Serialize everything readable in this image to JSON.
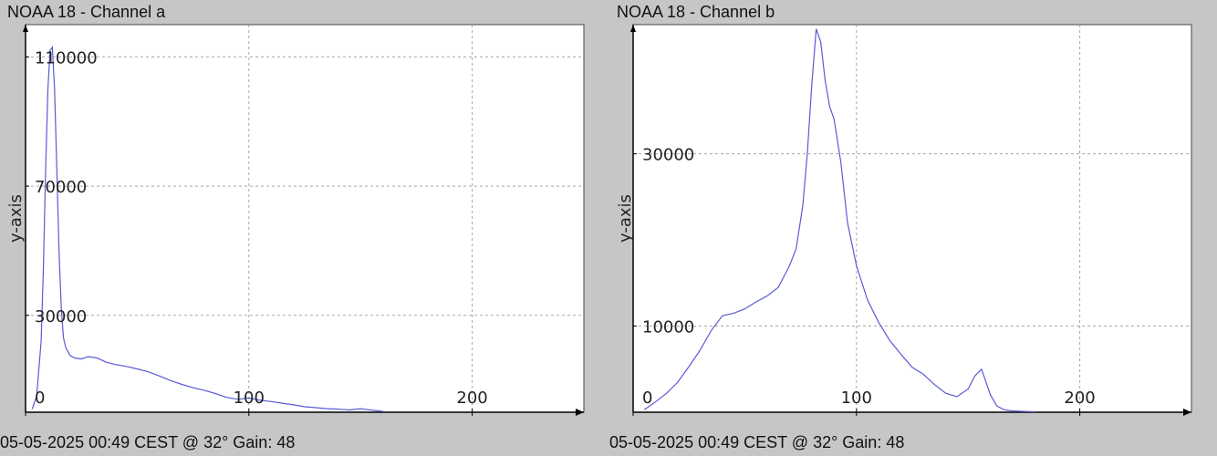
{
  "chart_data": [
    {
      "type": "line",
      "title": "NOAA 18 - Channel a",
      "ylabel": "y-axis",
      "footer": "05-05-2025 00:49 CEST @ 32° Gain: 48",
      "xlim": [
        0,
        250
      ],
      "ylim": [
        0,
        120000
      ],
      "xticks": [
        0,
        100,
        200
      ],
      "yticks": [
        30000,
        70000,
        110000
      ],
      "xtick_labels": [
        "0",
        "100",
        "200"
      ],
      "ytick_labels": [
        "30000",
        "70000",
        "110000"
      ],
      "grid": true,
      "color": "#5a5ad6",
      "series": [
        {
          "x": [
            3,
            5,
            7,
            8,
            9,
            10,
            11,
            12,
            13,
            14,
            15,
            16,
            17,
            18,
            20,
            22,
            25,
            28,
            32,
            36,
            40,
            45,
            50,
            55,
            60,
            65,
            70,
            75,
            80,
            85,
            90,
            95,
            100,
            105,
            110,
            115,
            120,
            125,
            130,
            135,
            140,
            145,
            150,
            155,
            160
          ],
          "y": [
            1000,
            5000,
            22000,
            45000,
            75000,
            100000,
            112000,
            113000,
            100000,
            75000,
            50000,
            32000,
            23000,
            20000,
            17500,
            16800,
            16500,
            17200,
            16800,
            15500,
            14800,
            14200,
            13400,
            12500,
            11200,
            9800,
            8600,
            7600,
            6800,
            5800,
            4600,
            4000,
            4400,
            3700,
            3300,
            2800,
            2300,
            1700,
            1400,
            1100,
            950,
            700,
            1100,
            650,
            250
          ]
        }
      ]
    },
    {
      "type": "line",
      "title": "NOAA 18 - Channel b",
      "ylabel": "y-axis",
      "footer": "05-05-2025 00:49 CEST @ 32° Gain: 48",
      "xlim": [
        0,
        250
      ],
      "ylim": [
        0,
        45000
      ],
      "xticks": [
        0,
        100,
        200
      ],
      "yticks": [
        10000,
        30000
      ],
      "xtick_labels": [
        "0",
        "100",
        "200"
      ],
      "ytick_labels": [
        "10000",
        "30000"
      ],
      "grid": true,
      "color": "#5a5ad6",
      "series": [
        {
          "x": [
            5,
            10,
            15,
            20,
            25,
            30,
            35,
            40,
            45,
            50,
            55,
            60,
            65,
            70,
            73,
            76,
            78,
            80,
            82,
            84,
            86,
            88,
            90,
            93,
            96,
            100,
            105,
            110,
            115,
            120,
            125,
            130,
            135,
            140,
            145,
            150,
            153,
            156,
            158,
            160,
            163,
            166,
            170,
            175,
            180
          ],
          "y": [
            300,
            1200,
            2200,
            3500,
            5300,
            7200,
            9500,
            11200,
            11500,
            12000,
            12800,
            13500,
            14500,
            17000,
            19000,
            24000,
            30000,
            38000,
            44500,
            43000,
            38500,
            35500,
            34000,
            29000,
            22000,
            17000,
            13000,
            10400,
            8300,
            6700,
            5200,
            4400,
            3200,
            2200,
            1800,
            2700,
            4200,
            5000,
            3500,
            2000,
            700,
            300,
            150,
            100,
            50
          ]
        }
      ]
    }
  ]
}
